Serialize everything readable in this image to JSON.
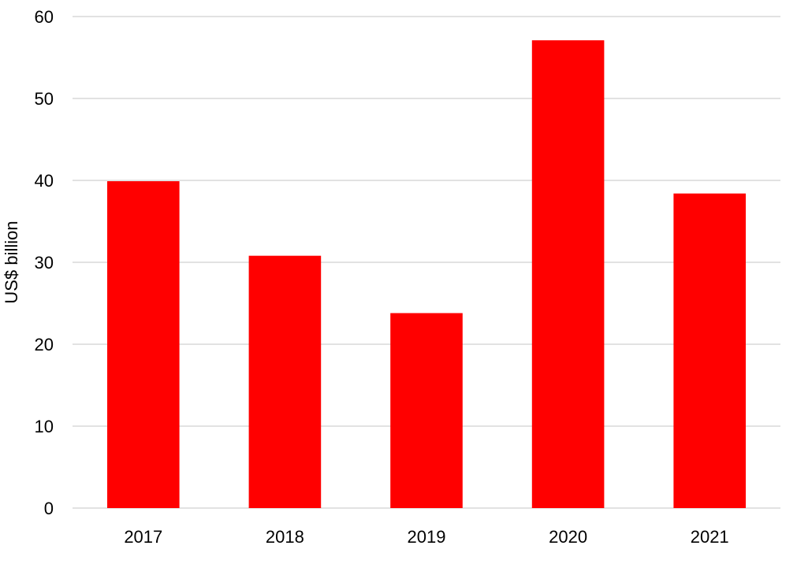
{
  "chart_data": {
    "type": "bar",
    "categories": [
      "2017",
      "2018",
      "2019",
      "2020",
      "2021"
    ],
    "values": [
      39.9,
      30.8,
      23.8,
      57.1,
      38.4
    ],
    "title": "",
    "xlabel": "",
    "ylabel": "US$ billion",
    "ylim": [
      0,
      60
    ],
    "yticks": [
      0,
      10,
      20,
      30,
      40,
      50,
      60
    ],
    "grid": true,
    "bar_color": "#ff0000",
    "grid_color": "#d9d9d9"
  }
}
